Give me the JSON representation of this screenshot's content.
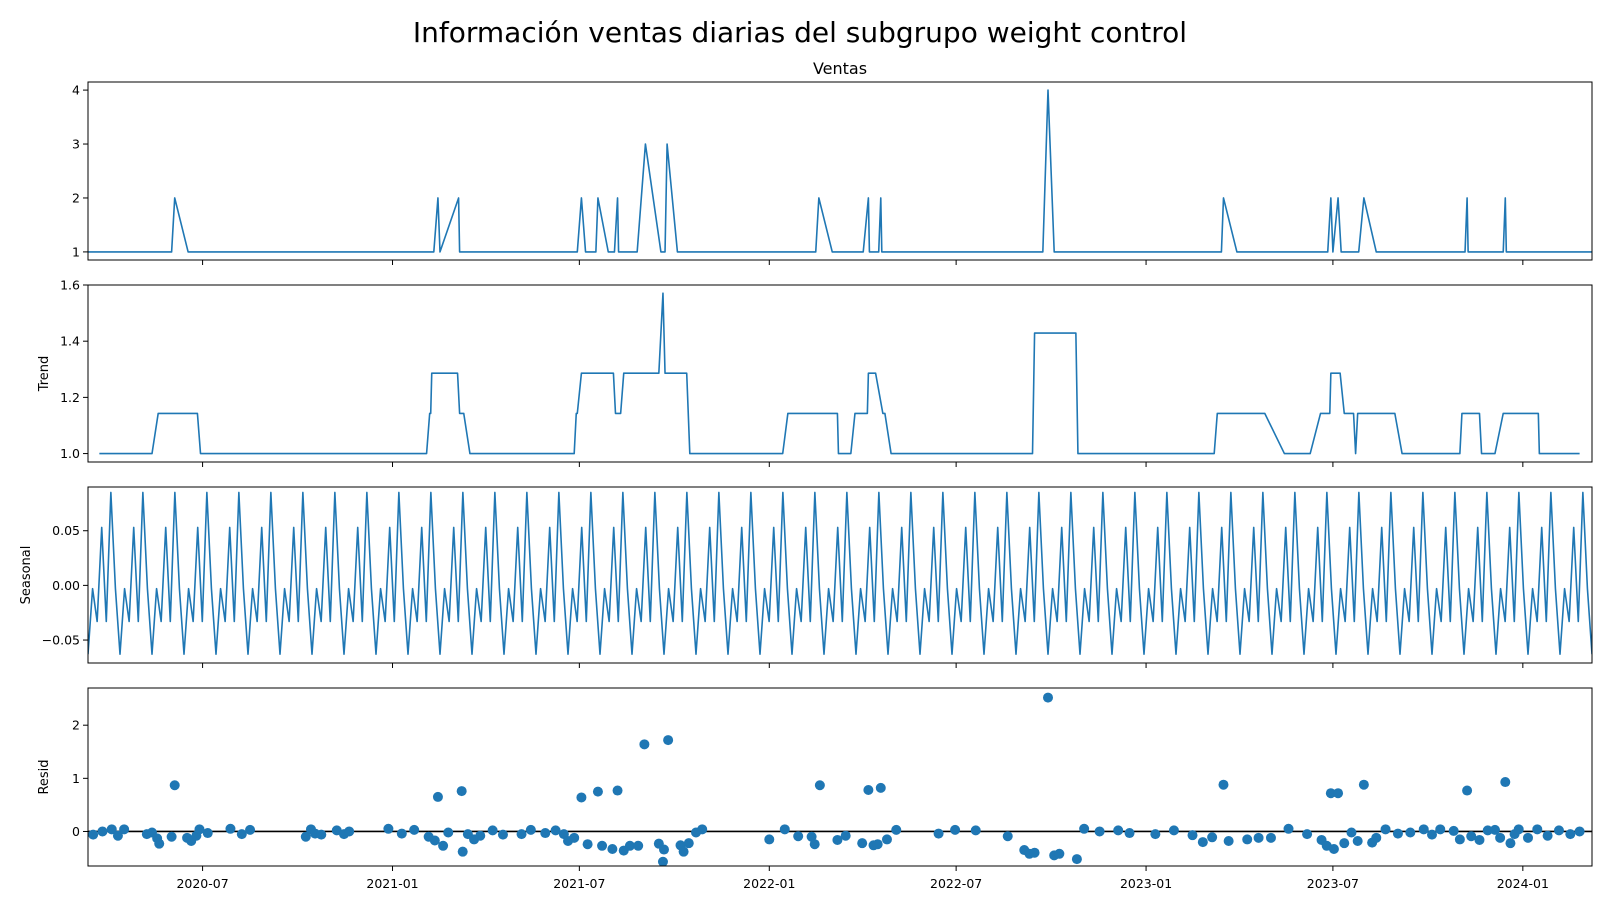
{
  "figure": {
    "title": "Información ventas diarias del subgrupo weight control"
  },
  "chart_data": [
    {
      "type": "line",
      "title": "Ventas",
      "ylabel": "",
      "ylim": [
        0.85,
        4.15
      ],
      "yticks": [
        1,
        2,
        3,
        4
      ],
      "xlim": [
        "2020-03-12",
        "2024-03-08"
      ],
      "xticks": [
        "2020-07-01",
        "2021-01-01",
        "2021-07-01",
        "2022-01-01",
        "2022-07-01",
        "2023-01-01",
        "2023-07-01",
        "2024-01-01"
      ],
      "xticklabels": [
        "2020-07",
        "2021-01",
        "2021-07",
        "2022-01",
        "2022-07",
        "2023-01",
        "2023-07",
        "2024-01"
      ],
      "show_xticklabels": false,
      "color": "#1f77b4",
      "points": [
        [
          "2020-03-12",
          1
        ],
        [
          "2020-06-01",
          1
        ],
        [
          "2020-06-04",
          2
        ],
        [
          "2020-06-17",
          1
        ],
        [
          "2021-02-10",
          1
        ],
        [
          "2021-02-14",
          2
        ],
        [
          "2021-02-16",
          1
        ],
        [
          "2021-03-06",
          2
        ],
        [
          "2021-03-07",
          1
        ],
        [
          "2021-06-29",
          1
        ],
        [
          "2021-07-03",
          2
        ],
        [
          "2021-07-07",
          1
        ],
        [
          "2021-07-17",
          1
        ],
        [
          "2021-07-19",
          2
        ],
        [
          "2021-07-29",
          1
        ],
        [
          "2021-08-04",
          1
        ],
        [
          "2021-08-07",
          2
        ],
        [
          "2021-08-08",
          1
        ],
        [
          "2021-08-26",
          1
        ],
        [
          "2021-09-03",
          3
        ],
        [
          "2021-09-18",
          1
        ],
        [
          "2021-09-22",
          1
        ],
        [
          "2021-09-24",
          3
        ],
        [
          "2021-10-04",
          1
        ],
        [
          "2022-02-15",
          1
        ],
        [
          "2022-02-18",
          2
        ],
        [
          "2022-03-03",
          1
        ],
        [
          "2022-04-02",
          1
        ],
        [
          "2022-04-07",
          2
        ],
        [
          "2022-04-08",
          1
        ],
        [
          "2022-04-17",
          1
        ],
        [
          "2022-04-19",
          2
        ],
        [
          "2022-04-20",
          1
        ],
        [
          "2022-09-23",
          1
        ],
        [
          "2022-09-28",
          4
        ],
        [
          "2022-10-04",
          1
        ],
        [
          "2023-03-15",
          1
        ],
        [
          "2023-03-17",
          2
        ],
        [
          "2023-03-30",
          1
        ],
        [
          "2023-06-26",
          1
        ],
        [
          "2023-06-29",
          2
        ],
        [
          "2023-07-01",
          1
        ],
        [
          "2023-07-06",
          2
        ],
        [
          "2023-07-09",
          1
        ],
        [
          "2023-07-26",
          1
        ],
        [
          "2023-07-31",
          2
        ],
        [
          "2023-08-12",
          1
        ],
        [
          "2023-11-06",
          1
        ],
        [
          "2023-11-08",
          2
        ],
        [
          "2023-11-09",
          1
        ],
        [
          "2023-12-13",
          1
        ],
        [
          "2023-12-15",
          2
        ],
        [
          "2023-12-16",
          1
        ],
        [
          "2024-03-08",
          1
        ]
      ]
    },
    {
      "type": "line",
      "title": "",
      "ylabel": "Trend",
      "ylim": [
        0.97,
        1.6
      ],
      "yticks": [
        1.0,
        1.2,
        1.4,
        1.6
      ],
      "xlim": [
        "2020-03-12",
        "2024-03-08"
      ],
      "xticks": [
        "2020-07-01",
        "2021-01-01",
        "2021-07-01",
        "2022-01-01",
        "2022-07-01",
        "2023-01-01",
        "2023-07-01",
        "2024-01-01"
      ],
      "xticklabels": [
        "2020-07",
        "2021-01",
        "2021-07",
        "2022-01",
        "2022-07",
        "2023-01",
        "2023-07",
        "2024-01"
      ],
      "show_xticklabels": false,
      "color": "#1f77b4",
      "points": [
        [
          "2020-03-23",
          1.0
        ],
        [
          "2020-05-13",
          1.0
        ],
        [
          "2020-05-19",
          1.143
        ],
        [
          "2020-06-26",
          1.143
        ],
        [
          "2020-06-29",
          1.0
        ],
        [
          "2021-02-03",
          1.0
        ],
        [
          "2021-02-06",
          1.143
        ],
        [
          "2021-02-07",
          1.143
        ],
        [
          "2021-02-08",
          1.286
        ],
        [
          "2021-03-05",
          1.286
        ],
        [
          "2021-03-07",
          1.143
        ],
        [
          "2021-03-11",
          1.143
        ],
        [
          "2021-03-17",
          1.0
        ],
        [
          "2021-06-26",
          1.0
        ],
        [
          "2021-06-28",
          1.143
        ],
        [
          "2021-06-29",
          1.143
        ],
        [
          "2021-07-03",
          1.286
        ],
        [
          "2021-08-03",
          1.286
        ],
        [
          "2021-08-05",
          1.143
        ],
        [
          "2021-08-10",
          1.143
        ],
        [
          "2021-08-13",
          1.286
        ],
        [
          "2021-09-15",
          1.286
        ],
        [
          "2021-09-16",
          1.286
        ],
        [
          "2021-09-20",
          1.571
        ],
        [
          "2021-09-22",
          1.286
        ],
        [
          "2021-10-13",
          1.286
        ],
        [
          "2021-10-16",
          1.0
        ],
        [
          "2022-01-14",
          1.0
        ],
        [
          "2022-01-19",
          1.143
        ],
        [
          "2022-02-21",
          1.143
        ],
        [
          "2022-03-08",
          1.143
        ],
        [
          "2022-03-09",
          1.0
        ],
        [
          "2022-03-21",
          1.0
        ],
        [
          "2022-03-25",
          1.143
        ],
        [
          "2022-04-06",
          1.143
        ],
        [
          "2022-04-07",
          1.286
        ],
        [
          "2022-04-14",
          1.286
        ],
        [
          "2022-04-21",
          1.143
        ],
        [
          "2022-04-23",
          1.143
        ],
        [
          "2022-04-29",
          1.0
        ],
        [
          "2022-09-13",
          1.0
        ],
        [
          "2022-09-15",
          1.429
        ],
        [
          "2022-10-25",
          1.429
        ],
        [
          "2022-10-27",
          1.0
        ],
        [
          "2023-03-08",
          1.0
        ],
        [
          "2023-03-11",
          1.143
        ],
        [
          "2023-04-26",
          1.143
        ],
        [
          "2023-05-15",
          1.0
        ],
        [
          "2023-06-09",
          1.0
        ],
        [
          "2023-06-19",
          1.143
        ],
        [
          "2023-06-28",
          1.143
        ],
        [
          "2023-06-29",
          1.286
        ],
        [
          "2023-07-08",
          1.286
        ],
        [
          "2023-07-12",
          1.143
        ],
        [
          "2023-07-21",
          1.143
        ],
        [
          "2023-07-23",
          1.0
        ],
        [
          "2023-07-25",
          1.143
        ],
        [
          "2023-08-30",
          1.143
        ],
        [
          "2023-09-06",
          1.0
        ],
        [
          "2023-11-01",
          1.0
        ],
        [
          "2023-11-03",
          1.143
        ],
        [
          "2023-11-20",
          1.143
        ],
        [
          "2023-11-22",
          1.0
        ],
        [
          "2023-12-05",
          1.0
        ],
        [
          "2023-12-13",
          1.143
        ],
        [
          "2023-12-28",
          1.143
        ],
        [
          "2024-01-16",
          1.143
        ],
        [
          "2024-01-17",
          1.0
        ],
        [
          "2024-02-25",
          1.0
        ]
      ]
    },
    {
      "type": "line",
      "title": "",
      "ylabel": "Seasonal",
      "ylim": [
        -0.071,
        0.09
      ],
      "yticks": [
        -0.05,
        0.0,
        0.05
      ],
      "yticklabels": [
        "−0.05",
        "0.00",
        "0.05"
      ],
      "xlim": [
        "2020-03-12",
        "2024-03-08"
      ],
      "xticks": [
        "2020-07-01",
        "2021-01-01",
        "2021-07-01",
        "2022-01-01",
        "2022-07-01",
        "2023-01-01",
        "2023-07-01",
        "2024-01-01"
      ],
      "xticklabels": [
        "2020-07",
        "2021-01",
        "2021-07",
        "2022-01",
        "2022-07",
        "2023-01",
        "2023-07",
        "2024-01"
      ],
      "show_xticklabels": false,
      "color": "#1f77b4",
      "pattern": [
        -0.063,
        -0.003,
        -0.033,
        0.053,
        -0.033,
        0.085,
        -0.003
      ],
      "start": "2020-03-12",
      "end": "2024-03-08",
      "n_points": 330
    },
    {
      "type": "scatter",
      "title": "",
      "ylabel": "Resid",
      "ylim": [
        -0.65,
        2.7
      ],
      "yticks": [
        0,
        1,
        2
      ],
      "xlim": [
        "2020-03-12",
        "2024-03-08"
      ],
      "xticks": [
        "2020-07-01",
        "2021-01-01",
        "2021-07-01",
        "2022-01-01",
        "2022-07-01",
        "2023-01-01",
        "2023-07-01",
        "2024-01-01"
      ],
      "xticklabels": [
        "2020-07",
        "2021-01",
        "2021-07",
        "2022-01",
        "2022-07",
        "2023-01",
        "2023-07",
        "2024-01"
      ],
      "show_xticklabels": true,
      "baseline": 0,
      "color": "#1f77b4",
      "points": [
        [
          "2020-03-17",
          -0.06
        ],
        [
          "2020-03-26",
          0.0
        ],
        [
          "2020-04-04",
          0.04
        ],
        [
          "2020-04-10",
          -0.08
        ],
        [
          "2020-04-16",
          0.04
        ],
        [
          "2020-05-08",
          -0.05
        ],
        [
          "2020-05-13",
          -0.02
        ],
        [
          "2020-05-18",
          -0.13
        ],
        [
          "2020-05-20",
          -0.23
        ],
        [
          "2020-06-01",
          -0.1
        ],
        [
          "2020-06-04",
          0.87
        ],
        [
          "2020-06-16",
          -0.12
        ],
        [
          "2020-06-20",
          -0.18
        ],
        [
          "2020-06-25",
          -0.08
        ],
        [
          "2020-06-28",
          0.04
        ],
        [
          "2020-07-06",
          -0.03
        ],
        [
          "2020-07-28",
          0.05
        ],
        [
          "2020-08-08",
          -0.05
        ],
        [
          "2020-08-16",
          0.03
        ],
        [
          "2020-10-09",
          -0.1
        ],
        [
          "2020-10-14",
          0.04
        ],
        [
          "2020-10-18",
          -0.04
        ],
        [
          "2020-10-24",
          -0.06
        ],
        [
          "2020-11-08",
          0.02
        ],
        [
          "2020-11-15",
          -0.05
        ],
        [
          "2020-11-20",
          0.0
        ],
        [
          "2020-12-28",
          0.05
        ],
        [
          "2021-01-10",
          -0.04
        ],
        [
          "2021-01-22",
          0.03
        ],
        [
          "2021-02-05",
          -0.1
        ],
        [
          "2021-02-11",
          -0.17
        ],
        [
          "2021-02-14",
          0.65
        ],
        [
          "2021-02-19",
          -0.27
        ],
        [
          "2021-02-24",
          -0.02
        ],
        [
          "2021-03-09",
          0.76
        ],
        [
          "2021-03-10",
          -0.38
        ],
        [
          "2021-03-15",
          -0.05
        ],
        [
          "2021-03-21",
          -0.15
        ],
        [
          "2021-03-27",
          -0.08
        ],
        [
          "2021-04-08",
          0.02
        ],
        [
          "2021-04-18",
          -0.06
        ],
        [
          "2021-05-06",
          -0.05
        ],
        [
          "2021-05-15",
          0.03
        ],
        [
          "2021-05-29",
          -0.03
        ],
        [
          "2021-06-08",
          0.02
        ],
        [
          "2021-06-16",
          -0.05
        ],
        [
          "2021-06-20",
          -0.18
        ],
        [
          "2021-06-26",
          -0.12
        ],
        [
          "2021-07-03",
          0.64
        ],
        [
          "2021-07-09",
          -0.24
        ],
        [
          "2021-07-19",
          0.75
        ],
        [
          "2021-07-23",
          -0.27
        ],
        [
          "2021-08-02",
          -0.33
        ],
        [
          "2021-08-07",
          0.77
        ],
        [
          "2021-08-13",
          -0.36
        ],
        [
          "2021-08-19",
          -0.27
        ],
        [
          "2021-08-27",
          -0.27
        ],
        [
          "2021-09-02",
          1.64
        ],
        [
          "2021-09-16",
          -0.23
        ],
        [
          "2021-09-20",
          -0.57
        ],
        [
          "2021-09-21",
          -0.34
        ],
        [
          "2021-09-25",
          1.72
        ],
        [
          "2021-10-07",
          -0.26
        ],
        [
          "2021-10-10",
          -0.38
        ],
        [
          "2021-10-15",
          -0.22
        ],
        [
          "2021-10-22",
          -0.02
        ],
        [
          "2021-10-28",
          0.04
        ],
        [
          "2022-01-01",
          -0.15
        ],
        [
          "2022-01-16",
          0.04
        ],
        [
          "2022-01-29",
          -0.09
        ],
        [
          "2022-02-11",
          -0.1
        ],
        [
          "2022-02-14",
          -0.24
        ],
        [
          "2022-02-19",
          0.87
        ],
        [
          "2022-03-08",
          -0.16
        ],
        [
          "2022-03-16",
          -0.08
        ],
        [
          "2022-04-01",
          -0.22
        ],
        [
          "2022-04-07",
          0.78
        ],
        [
          "2022-04-12",
          -0.26
        ],
        [
          "2022-04-16",
          -0.24
        ],
        [
          "2022-04-19",
          0.82
        ],
        [
          "2022-04-25",
          -0.15
        ],
        [
          "2022-05-04",
          0.03
        ],
        [
          "2022-06-14",
          -0.04
        ],
        [
          "2022-06-30",
          0.03
        ],
        [
          "2022-07-20",
          0.02
        ],
        [
          "2022-08-20",
          -0.09
        ],
        [
          "2022-09-05",
          -0.35
        ],
        [
          "2022-09-10",
          -0.42
        ],
        [
          "2022-09-15",
          -0.4
        ],
        [
          "2022-09-28",
          2.52
        ],
        [
          "2022-10-04",
          -0.45
        ],
        [
          "2022-10-09",
          -0.42
        ],
        [
          "2022-10-26",
          -0.52
        ],
        [
          "2022-11-02",
          0.05
        ],
        [
          "2022-11-17",
          0.0
        ],
        [
          "2022-12-05",
          0.02
        ],
        [
          "2022-12-16",
          -0.03
        ],
        [
          "2023-01-10",
          -0.05
        ],
        [
          "2023-01-28",
          0.02
        ],
        [
          "2023-02-15",
          -0.07
        ],
        [
          "2023-02-25",
          -0.2
        ],
        [
          "2023-03-06",
          -0.11
        ],
        [
          "2023-03-17",
          0.88
        ],
        [
          "2023-03-22",
          -0.18
        ],
        [
          "2023-04-09",
          -0.15
        ],
        [
          "2023-04-20",
          -0.12
        ],
        [
          "2023-05-02",
          -0.12
        ],
        [
          "2023-05-19",
          0.05
        ],
        [
          "2023-06-06",
          -0.05
        ],
        [
          "2023-06-20",
          -0.16
        ],
        [
          "2023-06-25",
          -0.27
        ],
        [
          "2023-06-29",
          0.72
        ],
        [
          "2023-07-02",
          -0.33
        ],
        [
          "2023-07-06",
          0.72
        ],
        [
          "2023-07-12",
          -0.22
        ],
        [
          "2023-07-19",
          -0.02
        ],
        [
          "2023-07-25",
          -0.18
        ],
        [
          "2023-07-31",
          0.88
        ],
        [
          "2023-08-08",
          -0.21
        ],
        [
          "2023-08-12",
          -0.12
        ],
        [
          "2023-08-21",
          0.04
        ],
        [
          "2023-09-02",
          -0.04
        ],
        [
          "2023-09-14",
          -0.02
        ],
        [
          "2023-09-27",
          0.04
        ],
        [
          "2023-10-05",
          -0.06
        ],
        [
          "2023-10-13",
          0.04
        ],
        [
          "2023-10-26",
          0.01
        ],
        [
          "2023-11-01",
          -0.15
        ],
        [
          "2023-11-08",
          0.77
        ],
        [
          "2023-11-12",
          -0.09
        ],
        [
          "2023-11-20",
          -0.16
        ],
        [
          "2023-11-28",
          0.02
        ],
        [
          "2023-12-05",
          0.03
        ],
        [
          "2023-12-10",
          -0.12
        ],
        [
          "2023-12-15",
          0.93
        ],
        [
          "2023-12-20",
          -0.22
        ],
        [
          "2023-12-24",
          -0.05
        ],
        [
          "2023-12-28",
          0.04
        ],
        [
          "2024-01-06",
          -0.12
        ],
        [
          "2024-01-15",
          0.04
        ],
        [
          "2024-01-25",
          -0.08
        ],
        [
          "2024-02-05",
          0.02
        ],
        [
          "2024-02-16",
          -0.05
        ],
        [
          "2024-02-25",
          0.0
        ]
      ]
    }
  ]
}
